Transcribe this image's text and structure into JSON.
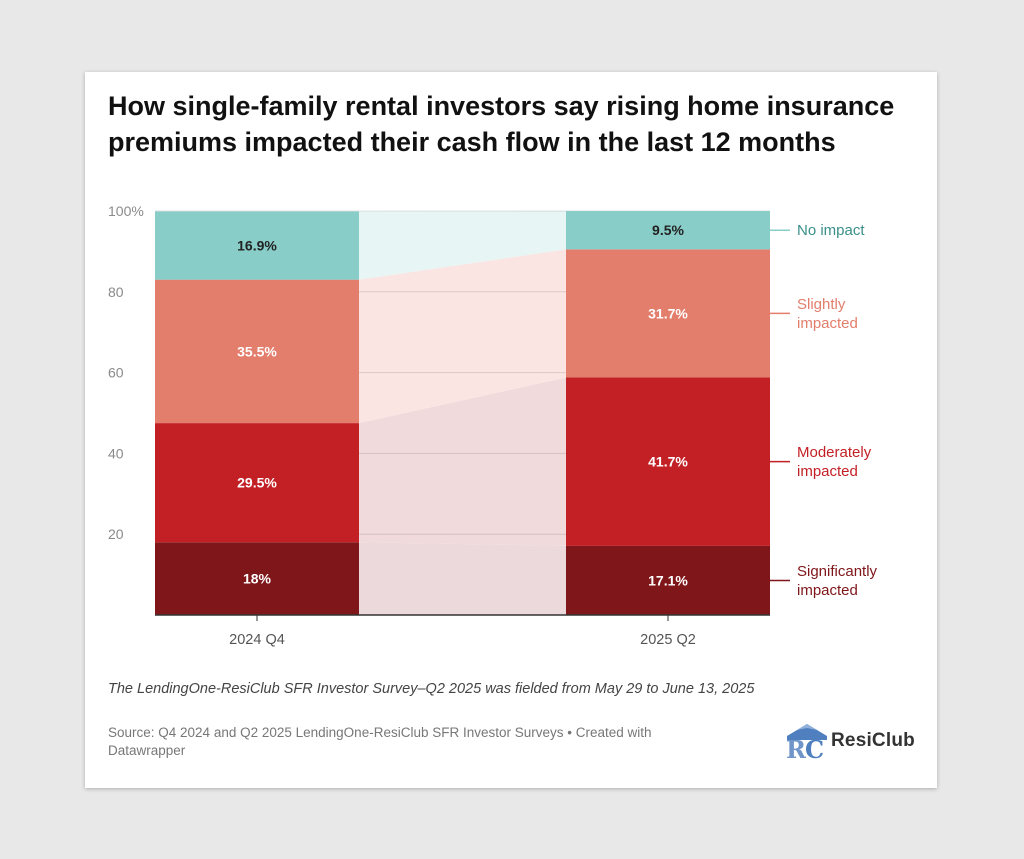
{
  "title": "How single-family rental investors say rising home insurance premiums impacted their cash flow in the last 12 months",
  "note": "The LendingOne-ResiClub SFR Investor Survey–Q2 2025 was fielded from May 29 to June 13, 2025",
  "source": "Source: Q4 2024 and Q2 2025 LendingOne-ResiClub SFR Investor Surveys • Created with Datawrapper",
  "logo": {
    "text": "ResiClub",
    "mark": "RC"
  },
  "chart_data": {
    "type": "bar",
    "stacked": true,
    "categories": [
      "2024 Q4",
      "2025 Q2"
    ],
    "ylim": [
      0,
      100
    ],
    "yticks": [
      20,
      40,
      60,
      80,
      100
    ],
    "ytick_labels": [
      "20",
      "40",
      "60",
      "80",
      "100%"
    ],
    "grid": true,
    "series": [
      {
        "name": "Significantly impacted",
        "values": [
          18,
          17.1
        ],
        "labels": [
          "18%",
          "17.1%"
        ],
        "color": "#7f161a",
        "band": "#ecd9db",
        "lines": [
          "Significantly",
          "impacted"
        ]
      },
      {
        "name": "Moderately impacted",
        "values": [
          29.5,
          41.7
        ],
        "labels": [
          "29.5%",
          "41.7%"
        ],
        "color": "#c32026",
        "band": "#f1dadb",
        "lines": [
          "Moderately",
          "impacted"
        ]
      },
      {
        "name": "Slightly impacted",
        "values": [
          35.5,
          31.7
        ],
        "labels": [
          "35.5%",
          "31.7%"
        ],
        "color": "#e37d6c",
        "band": "#fbe5e2",
        "lines": [
          "Slightly",
          "impacted"
        ]
      },
      {
        "name": "No impact",
        "values": [
          16.9,
          9.5
        ],
        "labels": [
          "16.9%",
          "9.5%"
        ],
        "color": "#88cdc8",
        "band": "#e7f5f4",
        "lines": [
          "No impact"
        ]
      }
    ],
    "legend_placement": "right"
  }
}
